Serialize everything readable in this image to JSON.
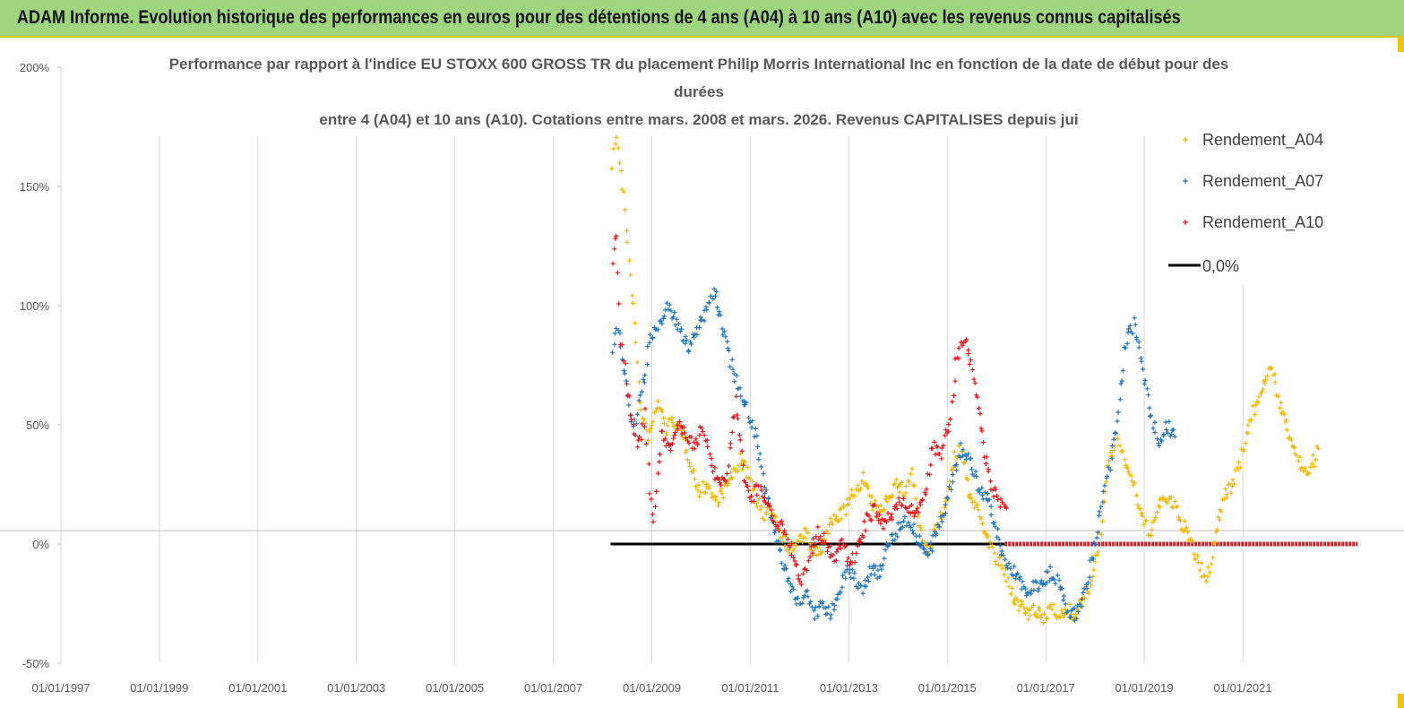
{
  "header": {
    "title": "ADAM Informe. Evolution historique des performances en euros pour des détentions de 4 ans (A04) à 10 ans (A10) avec les revenus connus capitalisés"
  },
  "chart_data": {
    "type": "scatter",
    "title_lines": [
      "Performance par rapport à l'indice EU STOXX 600 GROSS TR  du placement Philip Morris International Inc en fonction de la date de début pour des",
      "durées",
      "entre 4 (A04) et 10 ans (A10).  Cotations entre mars. 2008 et mars. 2026. Revenus CAPITALISES depuis jui"
    ],
    "x_ticks": [
      "01/01/1997",
      "01/01/1999",
      "01/01/2001",
      "01/01/2003",
      "01/01/2005",
      "01/01/2007",
      "01/01/2009",
      "01/01/2011",
      "01/01/2013",
      "01/01/2015",
      "01/01/2017",
      "01/01/2019",
      "01/01/2021"
    ],
    "y_ticks": [
      "200%",
      "150%",
      "100%",
      "50%",
      "0%",
      "-50%"
    ],
    "xlim": [
      "1997-01-01",
      "2023-05-01"
    ],
    "ylim": [
      -50,
      200
    ],
    "grid": "vertical",
    "legend_position": "top-right",
    "series": [
      {
        "name": "Rendement_A04",
        "color": "#f4b800",
        "points": [
          [
            "2008-03-15",
            160
          ],
          [
            "2008-04-15",
            172
          ],
          [
            "2008-05-15",
            155
          ],
          [
            "2008-06-15",
            140
          ],
          [
            "2008-07-15",
            120
          ],
          [
            "2008-08-15",
            100
          ],
          [
            "2008-09-15",
            75
          ],
          [
            "2008-10-15",
            55
          ],
          [
            "2008-11-15",
            48
          ],
          [
            "2008-12-15",
            45
          ],
          [
            "2009-02-15",
            60
          ],
          [
            "2009-04-15",
            48
          ],
          [
            "2009-06-15",
            52
          ],
          [
            "2009-08-15",
            45
          ],
          [
            "2009-10-15",
            35
          ],
          [
            "2009-12-15",
            22
          ],
          [
            "2010-02-15",
            25
          ],
          [
            "2010-04-15",
            18
          ],
          [
            "2010-06-15",
            22
          ],
          [
            "2010-08-15",
            28
          ],
          [
            "2010-10-15",
            35
          ],
          [
            "2010-12-15",
            30
          ],
          [
            "2011-02-15",
            20
          ],
          [
            "2011-04-15",
            10
          ],
          [
            "2011-06-15",
            15
          ],
          [
            "2011-08-15",
            5
          ],
          [
            "2011-10-15",
            -2
          ],
          [
            "2011-12-15",
            0
          ],
          [
            "2012-02-15",
            5
          ],
          [
            "2012-04-15",
            -5
          ],
          [
            "2012-06-15",
            -2
          ],
          [
            "2012-08-15",
            8
          ],
          [
            "2012-10-15",
            12
          ],
          [
            "2012-12-15",
            15
          ],
          [
            "2013-02-15",
            22
          ],
          [
            "2013-04-15",
            28
          ],
          [
            "2013-06-15",
            18
          ],
          [
            "2013-08-15",
            12
          ],
          [
            "2013-10-15",
            20
          ],
          [
            "2013-12-15",
            25
          ],
          [
            "2014-02-15",
            22
          ],
          [
            "2014-04-15",
            30
          ],
          [
            "2014-06-15",
            5
          ],
          [
            "2014-08-15",
            -5
          ],
          [
            "2014-10-15",
            8
          ],
          [
            "2014-12-15",
            15
          ],
          [
            "2015-02-15",
            35
          ],
          [
            "2015-04-15",
            40
          ],
          [
            "2015-06-15",
            20
          ],
          [
            "2015-08-15",
            15
          ],
          [
            "2015-10-15",
            5
          ],
          [
            "2015-12-15",
            -5
          ],
          [
            "2016-02-15",
            -10
          ],
          [
            "2016-04-15",
            -20
          ],
          [
            "2016-06-15",
            -25
          ],
          [
            "2016-08-15",
            -30
          ],
          [
            "2016-10-15",
            -28
          ],
          [
            "2016-12-15",
            -32
          ],
          [
            "2017-02-15",
            -25
          ],
          [
            "2017-04-15",
            -30
          ],
          [
            "2017-06-15",
            -28
          ],
          [
            "2017-08-15",
            -30
          ],
          [
            "2017-10-15",
            -22
          ],
          [
            "2017-12-15",
            -15
          ],
          [
            "2018-02-15",
            5
          ],
          [
            "2018-04-15",
            35
          ],
          [
            "2018-06-15",
            45
          ],
          [
            "2018-08-15",
            35
          ],
          [
            "2018-10-15",
            25
          ],
          [
            "2018-12-15",
            10
          ],
          [
            "2019-02-15",
            5
          ],
          [
            "2019-04-15",
            15
          ],
          [
            "2019-06-15",
            20
          ],
          [
            "2019-08-15",
            15
          ],
          [
            "2019-10-15",
            8
          ],
          [
            "2019-12-15",
            0
          ],
          [
            "2020-02-15",
            -10
          ],
          [
            "2020-04-15",
            -15
          ],
          [
            "2020-06-15",
            5
          ],
          [
            "2020-08-15",
            20
          ],
          [
            "2020-10-15",
            25
          ],
          [
            "2020-12-15",
            35
          ],
          [
            "2021-02-15",
            50
          ],
          [
            "2021-04-15",
            60
          ],
          [
            "2021-06-15",
            70
          ],
          [
            "2021-08-15",
            72
          ],
          [
            "2021-10-15",
            55
          ],
          [
            "2021-12-15",
            45
          ],
          [
            "2022-02-15",
            35
          ],
          [
            "2022-04-15",
            30
          ],
          [
            "2022-06-15",
            35
          ],
          [
            "2022-07-15",
            40
          ]
        ]
      },
      {
        "name": "Rendement_A07",
        "color": "#1f77c0",
        "points": [
          [
            "2008-03-15",
            80
          ],
          [
            "2008-04-15",
            90
          ],
          [
            "2008-05-15",
            85
          ],
          [
            "2008-06-15",
            70
          ],
          [
            "2008-07-15",
            60
          ],
          [
            "2008-08-15",
            50
          ],
          [
            "2008-09-15",
            55
          ],
          [
            "2008-10-15",
            65
          ],
          [
            "2008-11-15",
            72
          ],
          [
            "2008-12-15",
            85
          ],
          [
            "2009-02-15",
            90
          ],
          [
            "2009-04-15",
            100
          ],
          [
            "2009-06-15",
            95
          ],
          [
            "2009-08-15",
            88
          ],
          [
            "2009-10-15",
            82
          ],
          [
            "2009-12-15",
            92
          ],
          [
            "2010-02-15",
            100
          ],
          [
            "2010-04-15",
            105
          ],
          [
            "2010-06-15",
            90
          ],
          [
            "2010-08-15",
            75
          ],
          [
            "2010-10-15",
            65
          ],
          [
            "2010-12-15",
            55
          ],
          [
            "2011-02-15",
            45
          ],
          [
            "2011-04-15",
            25
          ],
          [
            "2011-06-15",
            10
          ],
          [
            "2011-08-15",
            -5
          ],
          [
            "2011-10-15",
            -15
          ],
          [
            "2011-12-15",
            -25
          ],
          [
            "2012-02-15",
            -20
          ],
          [
            "2012-04-15",
            -30
          ],
          [
            "2012-06-15",
            -25
          ],
          [
            "2012-08-15",
            -30
          ],
          [
            "2012-10-15",
            -20
          ],
          [
            "2012-12-15",
            -10
          ],
          [
            "2013-02-15",
            -15
          ],
          [
            "2013-04-15",
            -20
          ],
          [
            "2013-06-15",
            -10
          ],
          [
            "2013-08-15",
            -12
          ],
          [
            "2013-10-15",
            0
          ],
          [
            "2013-12-15",
            5
          ],
          [
            "2014-02-15",
            10
          ],
          [
            "2014-04-15",
            8
          ],
          [
            "2014-06-15",
            0
          ],
          [
            "2014-08-15",
            -5
          ],
          [
            "2014-10-15",
            5
          ],
          [
            "2014-12-15",
            15
          ],
          [
            "2015-02-15",
            30
          ],
          [
            "2015-04-15",
            40
          ],
          [
            "2015-06-15",
            35
          ],
          [
            "2015-08-15",
            25
          ],
          [
            "2015-10-15",
            20
          ],
          [
            "2015-12-15",
            10
          ],
          [
            "2016-02-15",
            -5
          ],
          [
            "2016-04-15",
            -10
          ],
          [
            "2016-06-15",
            -15
          ],
          [
            "2016-08-15",
            -20
          ],
          [
            "2016-10-15",
            -18
          ],
          [
            "2016-12-15",
            -15
          ],
          [
            "2017-02-15",
            -12
          ],
          [
            "2017-04-15",
            -18
          ],
          [
            "2017-06-15",
            -28
          ],
          [
            "2017-08-15",
            -30
          ],
          [
            "2017-10-15",
            -20
          ],
          [
            "2017-12-15",
            -5
          ],
          [
            "2018-02-15",
            15
          ],
          [
            "2018-04-15",
            30
          ],
          [
            "2018-06-15",
            50
          ],
          [
            "2018-08-15",
            85
          ],
          [
            "2018-10-15",
            92
          ],
          [
            "2018-12-15",
            75
          ],
          [
            "2019-02-15",
            55
          ],
          [
            "2019-04-15",
            42
          ],
          [
            "2019-06-15",
            50
          ],
          [
            "2019-08-15",
            45
          ]
        ]
      },
      {
        "name": "Rendement_A10",
        "color": "#e8151b",
        "points": [
          [
            "2008-03-15",
            120
          ],
          [
            "2008-04-15",
            130
          ],
          [
            "2008-05-15",
            85
          ],
          [
            "2008-06-15",
            75
          ],
          [
            "2008-07-15",
            60
          ],
          [
            "2008-08-15",
            50
          ],
          [
            "2008-09-15",
            40
          ],
          [
            "2008-10-15",
            45
          ],
          [
            "2008-11-15",
            55
          ],
          [
            "2008-12-15",
            20
          ],
          [
            "2009-01-15",
            10
          ],
          [
            "2009-03-15",
            45
          ],
          [
            "2009-05-15",
            40
          ],
          [
            "2009-07-15",
            50
          ],
          [
            "2009-09-15",
            45
          ],
          [
            "2009-11-15",
            42
          ],
          [
            "2010-01-15",
            48
          ],
          [
            "2010-03-15",
            35
          ],
          [
            "2010-05-15",
            25
          ],
          [
            "2010-07-15",
            30
          ],
          [
            "2010-09-15",
            60
          ],
          [
            "2010-11-15",
            28
          ],
          [
            "2011-01-15",
            20
          ],
          [
            "2011-03-15",
            25
          ],
          [
            "2011-05-15",
            15
          ],
          [
            "2011-07-15",
            10
          ],
          [
            "2011-09-15",
            5
          ],
          [
            "2011-11-15",
            -5
          ],
          [
            "2012-01-15",
            -15
          ],
          [
            "2012-03-15",
            -5
          ],
          [
            "2012-05-15",
            5
          ],
          [
            "2012-07-15",
            0
          ],
          [
            "2012-09-15",
            -8
          ],
          [
            "2012-11-15",
            2
          ],
          [
            "2013-01-15",
            -10
          ],
          [
            "2013-03-15",
            0
          ],
          [
            "2013-05-15",
            10
          ],
          [
            "2013-07-15",
            15
          ],
          [
            "2013-09-15",
            8
          ],
          [
            "2013-11-15",
            12
          ],
          [
            "2014-01-15",
            18
          ],
          [
            "2014-03-15",
            15
          ],
          [
            "2014-05-15",
            12
          ],
          [
            "2014-07-15",
            20
          ],
          [
            "2014-09-15",
            40
          ],
          [
            "2014-11-15",
            38
          ],
          [
            "2015-01-15",
            50
          ],
          [
            "2015-03-15",
            80
          ],
          [
            "2015-05-15",
            85
          ],
          [
            "2015-07-15",
            70
          ],
          [
            "2015-09-15",
            45
          ],
          [
            "2015-11-15",
            25
          ],
          [
            "2016-01-15",
            18
          ],
          [
            "2016-03-15",
            15
          ]
        ]
      }
    ],
    "zero_line": {
      "name": "0,0%",
      "color": "#000000",
      "x_start": "2008-03-01",
      "x_end": "2016-03-01",
      "y": 0
    },
    "red_zero_line": {
      "color": "#e8151b",
      "x_start": "2016-03-01",
      "x_end": "2023-05-01",
      "y": 0
    }
  }
}
